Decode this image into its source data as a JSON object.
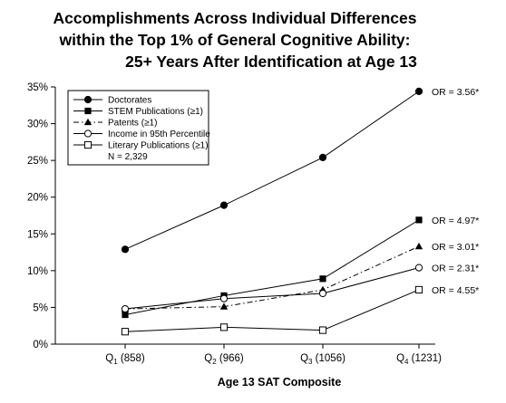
{
  "chart_data": {
    "type": "line",
    "title_lines": [
      "Accomplishments Across Individual Differences",
      "within the Top 1% of General Cognitive Ability:",
      "25+ Years After Identification at Age 13"
    ],
    "xlabel": "Age 13 SAT Composite",
    "ylabel": "",
    "categories": [
      {
        "q": "Q",
        "sub": "1",
        "val": "(858)"
      },
      {
        "q": "Q",
        "sub": "2",
        "val": "(966)"
      },
      {
        "q": "Q",
        "sub": "3",
        "val": "(1056)"
      },
      {
        "q": "Q",
        "sub": "4",
        "val": "(1231)"
      }
    ],
    "ylim": [
      0,
      35
    ],
    "yticks": [
      0,
      5,
      10,
      15,
      20,
      25,
      30,
      35
    ],
    "ytick_suffix": "%",
    "grid": false,
    "legend_position": "top-left",
    "legend_note": "N = 2,329",
    "series": [
      {
        "name": "Doctorates",
        "marker": "circle-filled",
        "dash": "solid",
        "values": [
          12.9,
          18.9,
          25.4,
          34.4
        ],
        "annotation": "OR = 3.56*"
      },
      {
        "name": "STEM Publications (≥1)",
        "marker": "square-filled",
        "dash": "solid",
        "values": [
          4.0,
          6.6,
          8.9,
          16.9
        ],
        "annotation": "OR = 4.97*"
      },
      {
        "name": "Patents (≥1)",
        "marker": "triangle-filled",
        "dash": "dashdot",
        "values": [
          4.8,
          5.1,
          7.4,
          13.3
        ],
        "annotation": "OR = 3.01*"
      },
      {
        "name": "Income in 95th Percentile",
        "marker": "circle-open",
        "dash": "solid",
        "values": [
          4.8,
          6.2,
          6.9,
          10.4
        ],
        "annotation": "OR = 2.31*"
      },
      {
        "name": "Literary Publications (≥1)",
        "marker": "square-open",
        "dash": "solid",
        "values": [
          1.7,
          2.3,
          1.9,
          7.4
        ],
        "annotation": "OR = 4.55*"
      }
    ]
  }
}
